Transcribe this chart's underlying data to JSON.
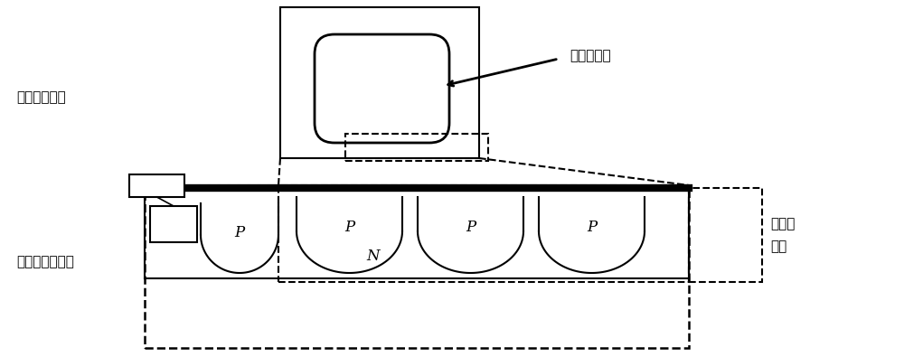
{
  "bg_color": "#ffffff",
  "line_color": "#000000",
  "label_top_view": "器件的俯视：",
  "label_cross_section": "器件的横截面：",
  "label_edge1": "器件的边缘",
  "label_edge2": "器件的\n边缘",
  "label_N": "N",
  "label_P": "P",
  "figsize": [
    10.0,
    3.95
  ],
  "dpi": 100
}
